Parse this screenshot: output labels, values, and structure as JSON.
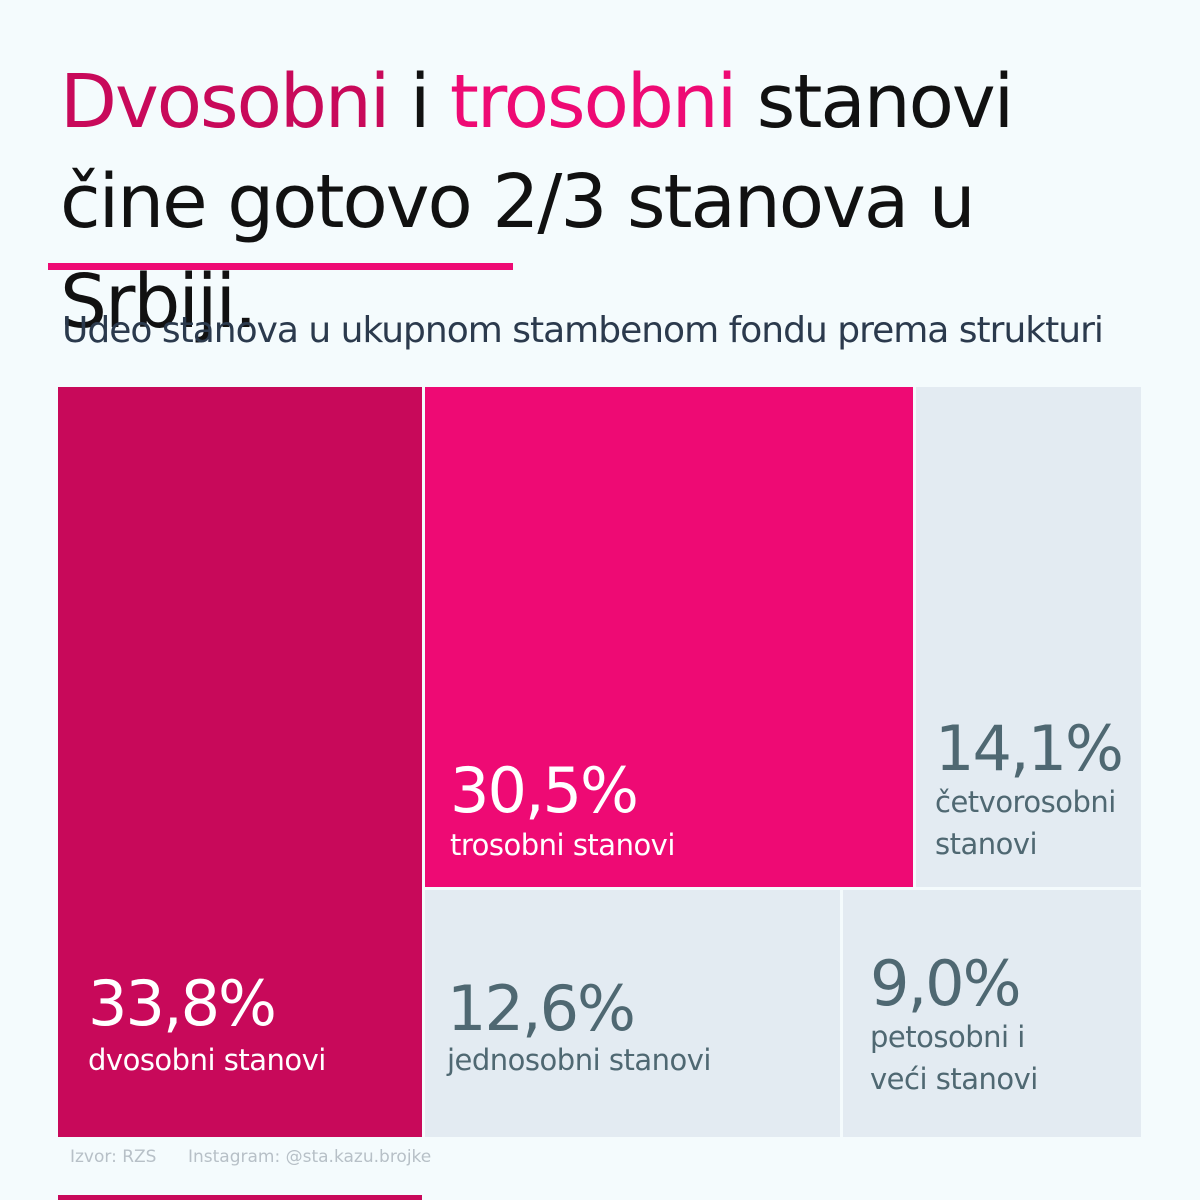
{
  "title": {
    "part1": "Dvosobni",
    "part2": " i ",
    "part3": "trosobni",
    "part4": " stanovi čine gotovo 2/3 stanova u Srbiji."
  },
  "subtitle": "Udeo stanova u ukupnom stambenom fondu prema strukturi",
  "footer": {
    "source": "Izvor: RZS",
    "instagram": "Instagram: @sta.kazu.brojke"
  },
  "colors": {
    "dvosobni": "#c8095a",
    "trosobni": "#ee0a74",
    "other": "#e3ebf2",
    "other_text": "#4f6872",
    "highlight_text": "#ffffff"
  },
  "chart_data": {
    "type": "treemap",
    "title": "Udeo stanova u ukupnom stambenom fondu prema strukturi",
    "unit": "%",
    "items": [
      {
        "key": "dvosobni",
        "label": "dvosobni stanovi",
        "label_lines": [
          "dvosobni stanovi"
        ],
        "value": 33.8,
        "value_text": "33,8%"
      },
      {
        "key": "trosobni",
        "label": "trosobni stanovi",
        "label_lines": [
          "trosobni stanovi"
        ],
        "value": 30.5,
        "value_text": "30,5%"
      },
      {
        "key": "cetvorosobni",
        "label": "četvorosobni stanovi",
        "label_lines": [
          "četvorosobni",
          "stanovi"
        ],
        "value": 14.1,
        "value_text": "14,1%"
      },
      {
        "key": "jednosobni",
        "label": "jednosobni stanovi",
        "label_lines": [
          "jednosobni stanovi"
        ],
        "value": 12.6,
        "value_text": "12,6%"
      },
      {
        "key": "petosobni",
        "label": "petosobni i veći stanovi",
        "label_lines": [
          "petosobni i",
          "veći stanovi"
        ],
        "value": 9.0,
        "value_text": "9,0%"
      }
    ]
  }
}
